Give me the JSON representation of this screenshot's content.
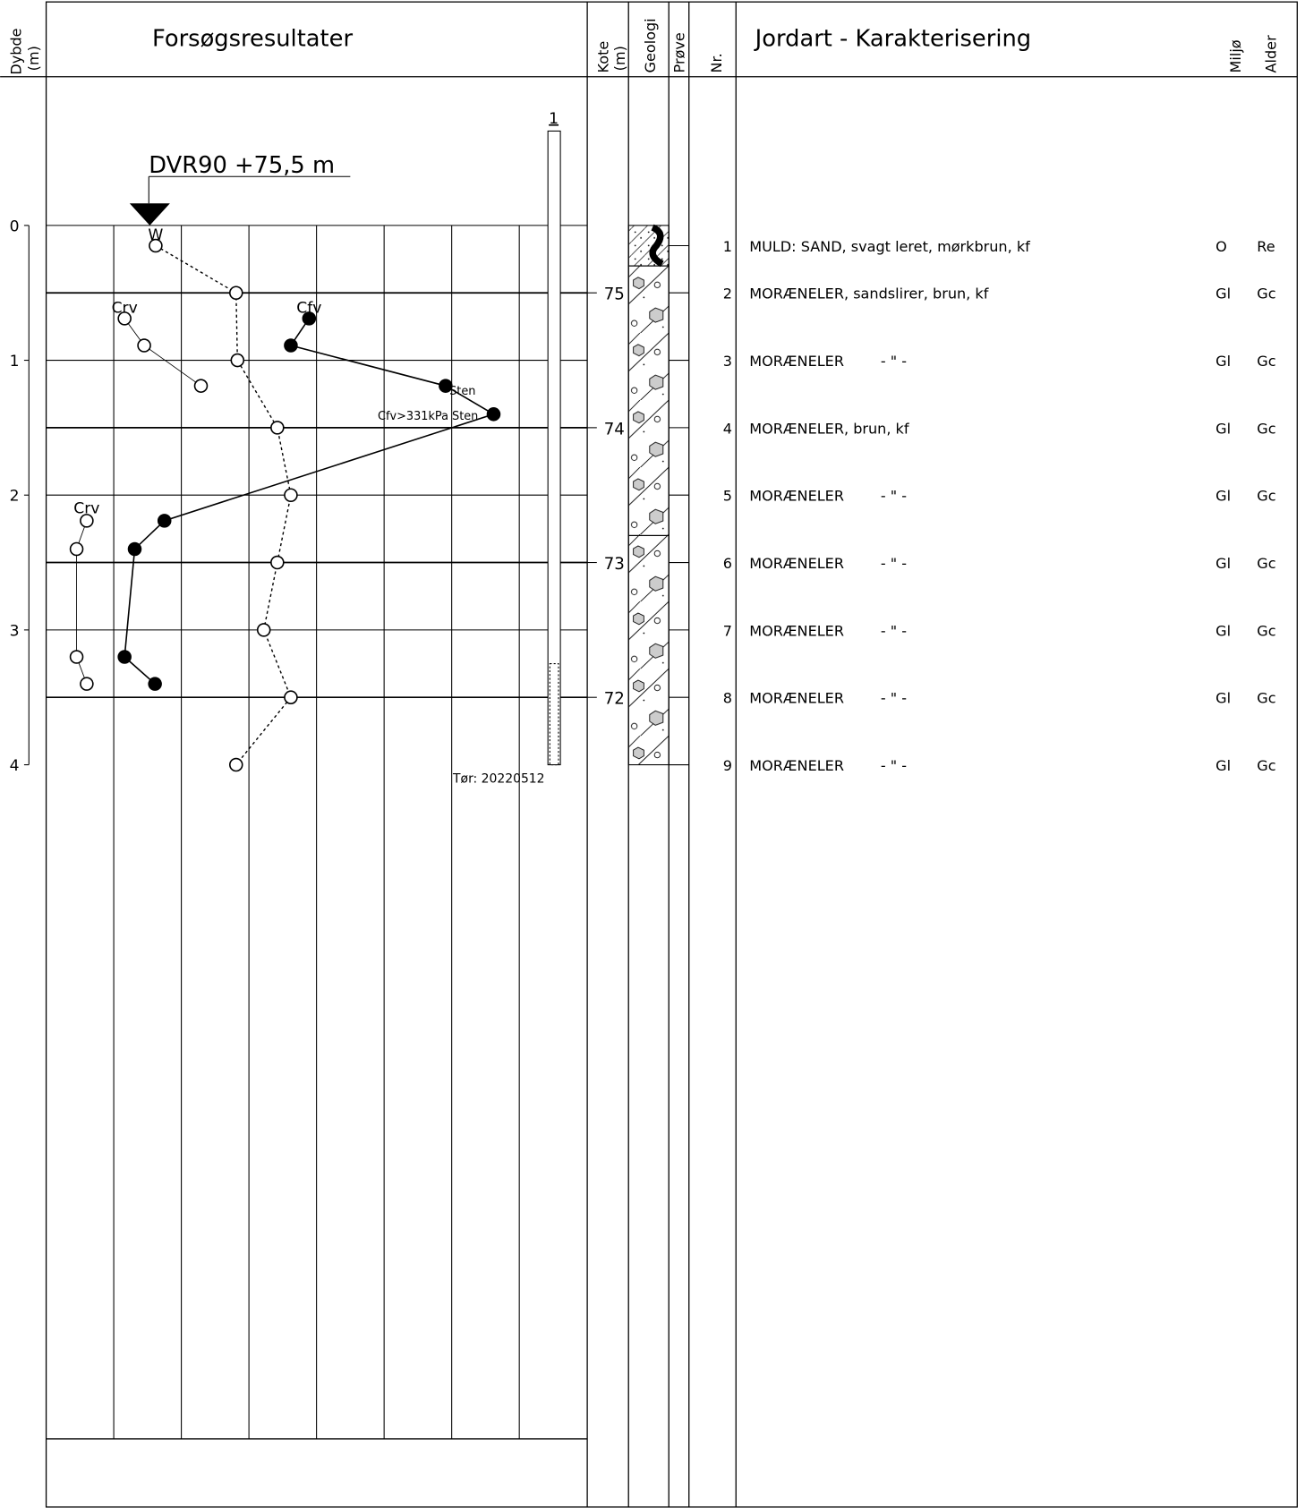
{
  "header": {
    "depth": [
      "Dybde",
      "(m)"
    ],
    "results": "Forsøgsresultater",
    "kote": [
      "Kote",
      "(m)"
    ],
    "geology": "Geologi",
    "sample": "Prøve",
    "nr": "Nr.",
    "description": "Jordart - Karakterisering",
    "environment": "Miljø",
    "age": "Alder"
  },
  "plot": {
    "ylim": [
      0,
      9
    ],
    "xlim": [
      0,
      8
    ],
    "depth_ticks": [
      0,
      1,
      2,
      3,
      4
    ],
    "grid_depths": [
      0,
      0.5,
      1,
      1.5,
      2,
      2.5,
      3,
      3.5
    ],
    "ground_level": {
      "value": 75.5,
      "label": "DVR90 +75,5 m"
    },
    "kote_ticks": [
      75,
      74,
      73,
      72
    ],
    "borehole": {
      "label": "1",
      "pipe": [
        -0.7,
        4.0
      ],
      "screen": [
        3.25,
        4.0
      ]
    },
    "dry_label": "Tør: 20220512",
    "series": [
      {
        "name": "W",
        "style": "dashed-open",
        "x": [
          1.62,
          2.81,
          2.83,
          3.42,
          3.62,
          3.42,
          3.22,
          3.62,
          2.81
        ],
        "depth": [
          0.15,
          0.5,
          1.0,
          1.5,
          2.0,
          2.5,
          3.0,
          3.5,
          4.0
        ]
      },
      {
        "name": "Cfv",
        "style": "solid-filled",
        "x": [
          3.89,
          3.62,
          5.91,
          6.62,
          1.75,
          1.31,
          1.16,
          1.61
        ],
        "depth": [
          0.69,
          0.89,
          1.19,
          1.4,
          2.19,
          2.4,
          3.2,
          3.4
        ]
      },
      {
        "name": "Crv",
        "style": "thin-open",
        "x": [
          1.16,
          1.45,
          2.29,
          null,
          0.6,
          0.45,
          0.45,
          0.6
        ],
        "depth": [
          0.69,
          0.89,
          1.19,
          null,
          2.19,
          2.4,
          3.2,
          3.4
        ]
      }
    ],
    "annotations": [
      "Crv",
      "Crv",
      "Sten",
      "Cfv>331kPa Sten"
    ],
    "layers": [
      {
        "top": 0,
        "bottom": 0.3
      },
      {
        "top": 0.3,
        "bottom": 2.3
      },
      {
        "top": 2.3,
        "bottom": 4.0
      }
    ]
  },
  "samples": [
    {
      "nr": 1,
      "depth": 0.15,
      "description": "MULD: SAND, svagt leret, mørkbrun, kf",
      "environment": "O",
      "age": "Re"
    },
    {
      "nr": 2,
      "depth": 0.5,
      "description": "MORÆNELER, sandslirer, brun, kf",
      "environment": "Gl",
      "age": "Gc"
    },
    {
      "nr": 3,
      "depth": 1.0,
      "description": "MORÆNELER        - \" -",
      "environment": "Gl",
      "age": "Gc"
    },
    {
      "nr": 4,
      "depth": 1.5,
      "description": "MORÆNELER, brun, kf",
      "environment": "Gl",
      "age": "Gc"
    },
    {
      "nr": 5,
      "depth": 2.0,
      "description": "MORÆNELER        - \" -",
      "environment": "Gl",
      "age": "Gc"
    },
    {
      "nr": 6,
      "depth": 2.5,
      "description": "MORÆNELER        - \" -",
      "environment": "Gl",
      "age": "Gc"
    },
    {
      "nr": 7,
      "depth": 3.0,
      "description": "MORÆNELER        - \" -",
      "environment": "Gl",
      "age": "Gc"
    },
    {
      "nr": 8,
      "depth": 3.5,
      "description": "MORÆNELER        - \" -",
      "environment": "Gl",
      "age": "Gc"
    },
    {
      "nr": 9,
      "depth": 4.0,
      "description": "MORÆNELER        - \" -",
      "environment": "Gl",
      "age": "Gc"
    }
  ]
}
